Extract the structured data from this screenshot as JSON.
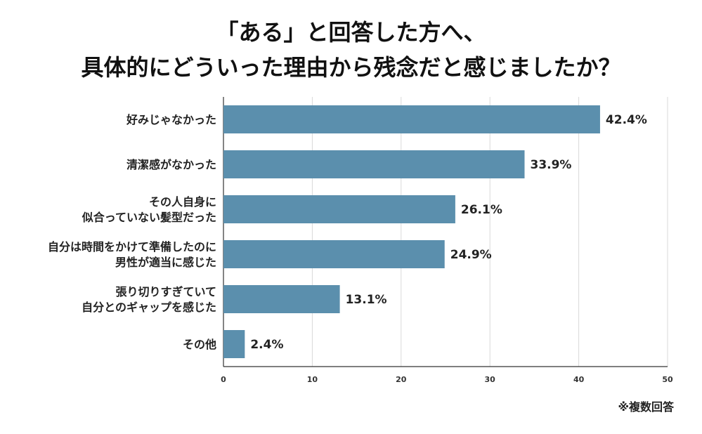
{
  "chart_data": {
    "type": "bar",
    "orientation": "horizontal",
    "title_lines": [
      "「ある」と回答した方へ、",
      "具体的にどういった理由から残念だと感じましたか？"
    ],
    "categories": [
      [
        "好みじゃなかった"
      ],
      [
        "清潔感がなかった"
      ],
      [
        "その人自身に",
        "似合っていない髪型だった"
      ],
      [
        "自分は時間をかけて準備したのに",
        "男性が適当に感じた"
      ],
      [
        "張り切りすぎていて",
        "自分とのギャップを感じた"
      ],
      [
        "その他"
      ]
    ],
    "values": [
      42.4,
      33.9,
      26.1,
      24.9,
      13.1,
      2.4
    ],
    "value_labels": [
      "42.4%",
      "33.9%",
      "26.1%",
      "24.9%",
      "13.1%",
      "2.4%"
    ],
    "xlim": [
      0,
      50
    ],
    "xticks": [
      "0",
      "10",
      "20",
      "30",
      "40",
      "50"
    ],
    "grid": true,
    "bar_color": "#5b8fad",
    "note": "※複数回答"
  }
}
